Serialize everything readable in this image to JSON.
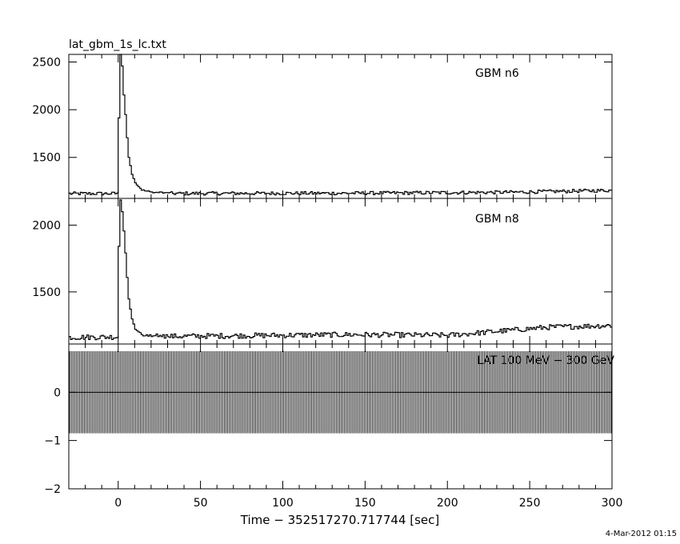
{
  "file_title": "lat_gbm_1s_lc.txt",
  "x_axis_title": "Time − 352517270.717744 [sec]",
  "timestamp": "4-Mar-2012 01:15",
  "chart_data": [
    {
      "type": "line",
      "panel_label": "GBM n6",
      "xlim": [
        -30,
        300
      ],
      "ylim": [
        1070,
        2580
      ],
      "yticks": [
        1500,
        2000,
        2500
      ],
      "xticks": [
        0,
        50,
        100,
        150,
        200,
        250,
        300
      ],
      "grid": false,
      "baseline": 1120,
      "noise": 18,
      "drift": [
        [
          -30,
          0
        ],
        [
          150,
          5
        ],
        [
          240,
          15
        ],
        [
          300,
          35
        ]
      ],
      "pulse": [
        [
          -1,
          1120
        ],
        [
          0,
          1920
        ],
        [
          0.5,
          2000
        ],
        [
          1,
          2600
        ],
        [
          2,
          2450
        ],
        [
          3,
          2150
        ],
        [
          4,
          1950
        ],
        [
          5,
          1700
        ],
        [
          6,
          1500
        ],
        [
          8,
          1320
        ],
        [
          10,
          1230
        ],
        [
          14,
          1160
        ],
        [
          20,
          1135
        ],
        [
          30,
          1125
        ]
      ]
    },
    {
      "type": "line",
      "panel_label": "GBM n8",
      "xlim": [
        -30,
        300
      ],
      "ylim": [
        1110,
        2200
      ],
      "yticks": [
        1500,
        2000
      ],
      "xticks": [
        0,
        50,
        100,
        150,
        200,
        250,
        300
      ],
      "grid": false,
      "baseline": 1160,
      "noise": 20,
      "drift": [
        [
          -30,
          0
        ],
        [
          140,
          20
        ],
        [
          200,
          15
        ],
        [
          230,
          45
        ],
        [
          260,
          75
        ],
        [
          300,
          90
        ]
      ],
      "pulse": [
        [
          -1,
          1160
        ],
        [
          0,
          1850
        ],
        [
          0.5,
          1900
        ],
        [
          1,
          2180
        ],
        [
          2,
          2100
        ],
        [
          3,
          1950
        ],
        [
          4,
          1800
        ],
        [
          5,
          1600
        ],
        [
          6,
          1450
        ],
        [
          8,
          1300
        ],
        [
          10,
          1220
        ],
        [
          14,
          1180
        ],
        [
          20,
          1165
        ],
        [
          30,
          1160
        ]
      ]
    },
    {
      "type": "scatter",
      "panel_label": "LAT 100 MeV − 300 GeV",
      "xlim": [
        -30,
        300
      ],
      "ylim": [
        -2,
        1
      ],
      "yticks": [
        -2,
        -1,
        0
      ],
      "xticks": [
        0,
        50,
        100,
        150,
        200,
        250,
        300
      ],
      "grid": false,
      "x_start": -30,
      "x_end": 300,
      "bin_width": 1,
      "value": 0,
      "error": 0.85
    }
  ]
}
